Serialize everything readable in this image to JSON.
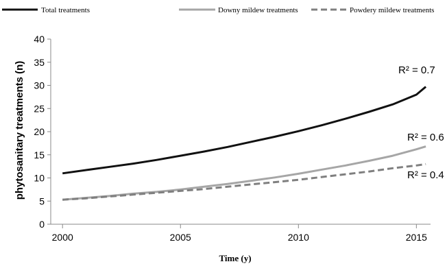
{
  "chart_data": {
    "type": "line",
    "xlabel": "Time (y)",
    "ylabel": "phytosanitary treatments  (n)",
    "xlim": [
      1999.5,
      2015.6
    ],
    "ylim": [
      0,
      40
    ],
    "xticks": [
      2000,
      2005,
      2010,
      2015
    ],
    "yticks": [
      0,
      5,
      10,
      15,
      20,
      25,
      30,
      35,
      40
    ],
    "grid": false,
    "legend_position": "top",
    "series": [
      {
        "name": "Total treatments",
        "color": "#111111",
        "style": "solid",
        "r2_label": "R² = 0.7",
        "x": [
          2000,
          2001,
          2002,
          2003,
          2004,
          2005,
          2006,
          2007,
          2008,
          2009,
          2010,
          2011,
          2012,
          2013,
          2014,
          2015,
          2015.4
        ],
        "y": [
          11.0,
          11.7,
          12.4,
          13.1,
          13.9,
          14.8,
          15.7,
          16.7,
          17.8,
          18.9,
          20.1,
          21.4,
          22.8,
          24.3,
          25.9,
          28.0,
          29.7
        ]
      },
      {
        "name": "Downy mildew treatments",
        "color": "#a6a6a6",
        "style": "solid",
        "r2_label": "R² = 0.6",
        "x": [
          2000,
          2001,
          2002,
          2003,
          2004,
          2005,
          2006,
          2007,
          2008,
          2009,
          2010,
          2011,
          2012,
          2013,
          2014,
          2015,
          2015.4
        ],
        "y": [
          5.3,
          5.7,
          6.1,
          6.6,
          7.0,
          7.5,
          8.1,
          8.7,
          9.4,
          10.1,
          10.9,
          11.8,
          12.7,
          13.7,
          14.8,
          16.2,
          16.8
        ]
      },
      {
        "name": "Powdery mildew treatments",
        "color": "#7f7f7f",
        "style": "dashed",
        "r2_label": "R² = 0.4",
        "x": [
          2000,
          2001,
          2002,
          2003,
          2004,
          2005,
          2006,
          2007,
          2008,
          2009,
          2010,
          2011,
          2012,
          2013,
          2014,
          2015,
          2015.4
        ],
        "y": [
          5.3,
          5.6,
          6.0,
          6.4,
          6.8,
          7.2,
          7.6,
          8.1,
          8.6,
          9.1,
          9.6,
          10.2,
          10.8,
          11.4,
          12.1,
          12.7,
          13.0
        ]
      }
    ]
  }
}
